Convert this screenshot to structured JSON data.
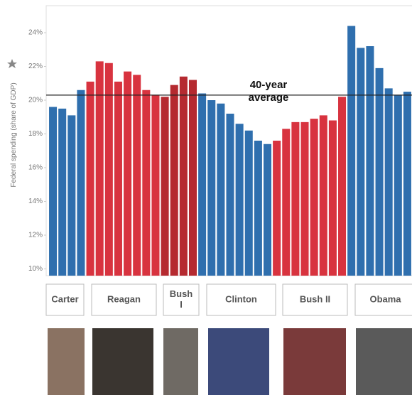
{
  "chart_data": {
    "type": "bar",
    "y_label": "Federal spending (share of GDP)",
    "categories": [
      null,
      null,
      null,
      null,
      null,
      null,
      null,
      null,
      null,
      null,
      null,
      null,
      null,
      null,
      null,
      null,
      null,
      null,
      null,
      null,
      null,
      null,
      null,
      null,
      null,
      null,
      null,
      null,
      null,
      null,
      null,
      null,
      null,
      null,
      null,
      null,
      null,
      null,
      null
    ],
    "values": [
      19.6,
      19.5,
      19.1,
      20.6,
      21.1,
      22.3,
      22.2,
      21.1,
      21.7,
      21.5,
      20.6,
      20.3,
      20.2,
      20.9,
      21.4,
      21.2,
      20.4,
      20.0,
      19.8,
      19.2,
      18.6,
      18.2,
      17.6,
      17.4,
      17.6,
      18.3,
      18.7,
      18.7,
      18.9,
      19.1,
      18.8,
      20.2,
      24.4,
      23.1,
      23.2,
      21.9,
      20.7,
      20.3,
      20.5
    ],
    "colors": [
      "#2f6fae",
      "#2f6fae",
      "#2f6fae",
      "#2f6fae",
      "#d8333f",
      "#d8333f",
      "#d8333f",
      "#d8333f",
      "#d8333f",
      "#d8333f",
      "#d8333f",
      "#d8333f",
      "#b52a30",
      "#b52a30",
      "#b52a30",
      "#b52a30",
      "#2f6fae",
      "#2f6fae",
      "#2f6fae",
      "#2f6fae",
      "#2f6fae",
      "#2f6fae",
      "#2f6fae",
      "#2f6fae",
      "#d8333f",
      "#d8333f",
      "#d8333f",
      "#d8333f",
      "#d8333f",
      "#d8333f",
      "#d8333f",
      "#d8333f",
      "#2f6fae",
      "#2f6fae",
      "#2f6fae",
      "#2f6fae",
      "#2f6fae",
      "#2f6fae",
      "#2f6fae"
    ],
    "ylim": [
      9.6,
      25.6
    ],
    "yticks": [
      {
        "value": 10,
        "label": "10%"
      },
      {
        "value": 12,
        "label": "12%"
      },
      {
        "value": 14,
        "label": "14%"
      },
      {
        "value": 16,
        "label": "16%"
      },
      {
        "value": 18,
        "label": "18%"
      },
      {
        "value": 20,
        "label": "20%"
      },
      {
        "value": 22,
        "label": "22%"
      },
      {
        "value": 24,
        "label": "24%"
      }
    ],
    "average_line": {
      "value": 20.3,
      "label": [
        "40-year",
        "average"
      ]
    },
    "groups": [
      [
        "Carter"
      ],
      [
        "Reagan"
      ],
      [
        "Bush",
        "I"
      ],
      [
        "Clinton"
      ],
      [
        "Bush II"
      ],
      [
        "Obama"
      ]
    ]
  }
}
